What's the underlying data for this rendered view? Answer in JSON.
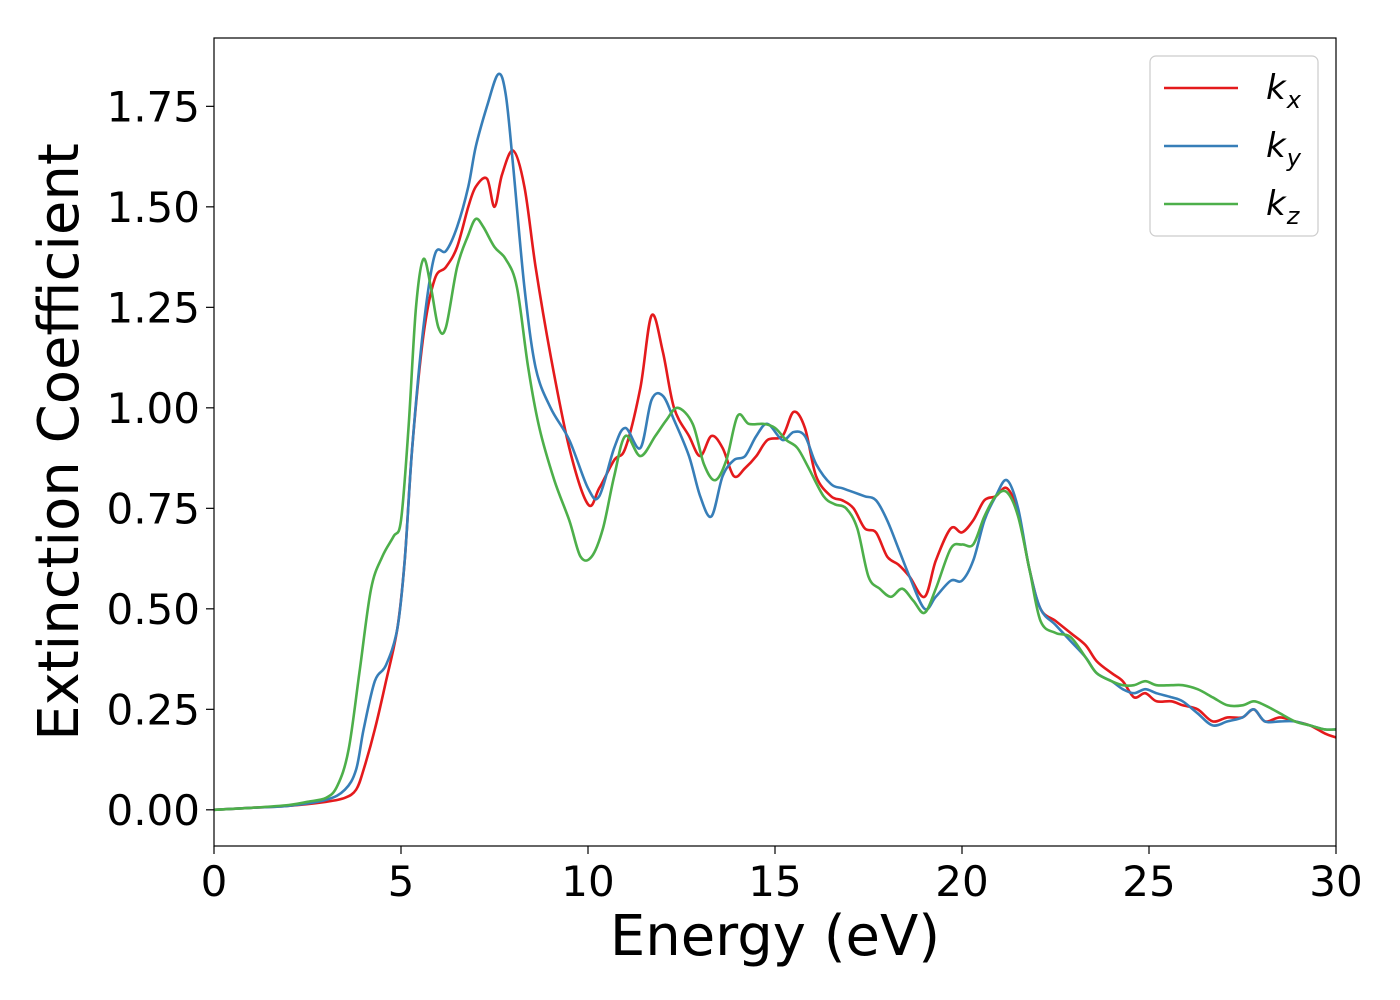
{
  "chart_data": {
    "type": "line",
    "title": "",
    "xlabel": "Energy (eV)",
    "ylabel": "Extinction Coefficient",
    "xlim": [
      0,
      30
    ],
    "ylim": [
      -0.09,
      1.92
    ],
    "xticks": [
      0,
      5,
      10,
      15,
      20,
      25,
      30
    ],
    "xtick_labels": [
      "0",
      "5",
      "10",
      "15",
      "20",
      "25",
      "30"
    ],
    "yticks": [
      0,
      0.25,
      0.5,
      0.75,
      1.0,
      1.25,
      1.5,
      1.75
    ],
    "ytick_labels": [
      "0.00",
      "0.25",
      "0.50",
      "0.75",
      "1.00",
      "1.25",
      "1.50",
      "1.75"
    ],
    "grid": false,
    "legend_position": "top-right",
    "series": [
      {
        "name": "k_x",
        "label_main": "k",
        "label_sub": "x",
        "color": "#e41a1c",
        "x": [
          0,
          1,
          2,
          3,
          3.5,
          3.8,
          4.0,
          4.3,
          4.6,
          4.9,
          5.1,
          5.3,
          5.6,
          5.9,
          6.2,
          6.5,
          6.8,
          7.0,
          7.3,
          7.5,
          7.7,
          8.0,
          8.3,
          8.6,
          9.0,
          9.5,
          10.0,
          10.3,
          10.7,
          11.0,
          11.4,
          11.7,
          12.0,
          12.3,
          12.7,
          13.0,
          13.3,
          13.6,
          13.9,
          14.2,
          14.5,
          14.8,
          15.2,
          15.5,
          15.8,
          16.1,
          16.5,
          16.8,
          17.1,
          17.4,
          17.7,
          18.0,
          18.3,
          18.6,
          19.0,
          19.3,
          19.7,
          20.0,
          20.3,
          20.6,
          20.9,
          21.2,
          21.5,
          21.8,
          22.1,
          22.5,
          22.9,
          23.3,
          23.6,
          24.0,
          24.3,
          24.6,
          24.9,
          25.2,
          25.6,
          25.9,
          26.3,
          26.7,
          27.1,
          27.5,
          27.8,
          28.1,
          28.5,
          28.9,
          29.3,
          29.7,
          30.0
        ],
        "y": [
          0,
          0.005,
          0.01,
          0.02,
          0.03,
          0.05,
          0.1,
          0.2,
          0.32,
          0.45,
          0.62,
          0.9,
          1.18,
          1.32,
          1.35,
          1.4,
          1.5,
          1.55,
          1.57,
          1.5,
          1.58,
          1.64,
          1.55,
          1.35,
          1.13,
          0.9,
          0.76,
          0.8,
          0.87,
          0.9,
          1.05,
          1.23,
          1.14,
          1.0,
          0.93,
          0.88,
          0.93,
          0.9,
          0.83,
          0.85,
          0.88,
          0.92,
          0.93,
          0.99,
          0.95,
          0.83,
          0.78,
          0.77,
          0.75,
          0.7,
          0.69,
          0.63,
          0.61,
          0.58,
          0.53,
          0.62,
          0.7,
          0.69,
          0.72,
          0.77,
          0.78,
          0.8,
          0.74,
          0.6,
          0.5,
          0.47,
          0.44,
          0.41,
          0.37,
          0.34,
          0.32,
          0.28,
          0.29,
          0.27,
          0.27,
          0.26,
          0.25,
          0.22,
          0.23,
          0.23,
          0.25,
          0.22,
          0.23,
          0.22,
          0.21,
          0.19,
          0.18
        ]
      },
      {
        "name": "k_y",
        "label_main": "k",
        "label_sub": "y",
        "color": "#377eb8",
        "x": [
          0,
          1,
          2,
          3,
          3.5,
          3.8,
          4.0,
          4.3,
          4.6,
          4.9,
          5.1,
          5.3,
          5.6,
          5.9,
          6.2,
          6.5,
          6.8,
          7.0,
          7.3,
          7.6,
          7.8,
          8.0,
          8.3,
          8.6,
          9.0,
          9.5,
          10.0,
          10.3,
          10.7,
          11.0,
          11.4,
          11.7,
          12.0,
          12.3,
          12.7,
          13.0,
          13.3,
          13.6,
          13.9,
          14.2,
          14.5,
          14.8,
          15.2,
          15.5,
          15.8,
          16.1,
          16.5,
          16.8,
          17.1,
          17.4,
          17.7,
          18.0,
          18.3,
          18.6,
          19.0,
          19.3,
          19.7,
          20.0,
          20.3,
          20.6,
          20.9,
          21.2,
          21.5,
          21.8,
          22.1,
          22.5,
          22.9,
          23.3,
          23.6,
          24.0,
          24.3,
          24.6,
          24.9,
          25.2,
          25.6,
          25.9,
          26.3,
          26.7,
          27.1,
          27.5,
          27.8,
          28.1,
          28.5,
          28.9,
          29.3,
          29.7,
          30.0
        ],
        "y": [
          0,
          0.005,
          0.01,
          0.025,
          0.05,
          0.1,
          0.2,
          0.32,
          0.36,
          0.45,
          0.62,
          0.9,
          1.2,
          1.38,
          1.39,
          1.45,
          1.55,
          1.65,
          1.75,
          1.83,
          1.78,
          1.6,
          1.3,
          1.1,
          1.0,
          0.92,
          0.8,
          0.78,
          0.9,
          0.95,
          0.9,
          1.02,
          1.03,
          0.97,
          0.88,
          0.78,
          0.73,
          0.83,
          0.87,
          0.88,
          0.93,
          0.96,
          0.92,
          0.94,
          0.93,
          0.86,
          0.81,
          0.8,
          0.79,
          0.78,
          0.77,
          0.72,
          0.65,
          0.58,
          0.5,
          0.53,
          0.57,
          0.57,
          0.62,
          0.72,
          0.78,
          0.82,
          0.75,
          0.6,
          0.5,
          0.46,
          0.42,
          0.38,
          0.34,
          0.32,
          0.3,
          0.29,
          0.3,
          0.29,
          0.28,
          0.27,
          0.24,
          0.21,
          0.22,
          0.23,
          0.25,
          0.22,
          0.22,
          0.22,
          0.21,
          0.2,
          0.2
        ]
      },
      {
        "name": "k_z",
        "label_main": "k",
        "label_sub": "z",
        "color": "#4daf4a",
        "x": [
          0,
          1,
          2,
          2.5,
          3,
          3.3,
          3.6,
          3.9,
          4.2,
          4.5,
          4.8,
          5.0,
          5.2,
          5.4,
          5.6,
          5.8,
          6.0,
          6.2,
          6.5,
          6.8,
          7.0,
          7.2,
          7.5,
          7.8,
          8.1,
          8.4,
          8.7,
          9.1,
          9.5,
          9.8,
          10.1,
          10.4,
          10.7,
          11.0,
          11.4,
          11.8,
          12.1,
          12.4,
          12.8,
          13.1,
          13.4,
          13.7,
          14.0,
          14.3,
          14.7,
          15.0,
          15.3,
          15.6,
          15.9,
          16.3,
          16.6,
          16.9,
          17.2,
          17.5,
          17.8,
          18.1,
          18.4,
          18.7,
          19.0,
          19.3,
          19.7,
          20.0,
          20.3,
          20.6,
          20.9,
          21.2,
          21.5,
          21.8,
          22.1,
          22.5,
          22.9,
          23.3,
          23.6,
          24.0,
          24.3,
          24.6,
          24.9,
          25.2,
          25.6,
          25.9,
          26.3,
          26.7,
          27.1,
          27.5,
          27.8,
          28.1,
          28.5,
          28.9,
          29.3,
          29.7,
          30.0
        ],
        "y": [
          0,
          0.005,
          0.012,
          0.02,
          0.03,
          0.06,
          0.15,
          0.35,
          0.55,
          0.63,
          0.68,
          0.72,
          0.95,
          1.25,
          1.37,
          1.3,
          1.2,
          1.2,
          1.35,
          1.43,
          1.47,
          1.45,
          1.4,
          1.37,
          1.3,
          1.1,
          0.95,
          0.82,
          0.72,
          0.63,
          0.63,
          0.7,
          0.83,
          0.93,
          0.88,
          0.93,
          0.97,
          1.0,
          0.96,
          0.86,
          0.82,
          0.87,
          0.98,
          0.96,
          0.96,
          0.95,
          0.92,
          0.9,
          0.85,
          0.78,
          0.76,
          0.75,
          0.7,
          0.58,
          0.55,
          0.53,
          0.55,
          0.52,
          0.49,
          0.55,
          0.65,
          0.66,
          0.66,
          0.73,
          0.78,
          0.79,
          0.73,
          0.6,
          0.47,
          0.44,
          0.43,
          0.38,
          0.34,
          0.32,
          0.31,
          0.31,
          0.32,
          0.31,
          0.31,
          0.31,
          0.3,
          0.28,
          0.26,
          0.26,
          0.27,
          0.26,
          0.24,
          0.22,
          0.21,
          0.2,
          0.2
        ]
      }
    ]
  }
}
